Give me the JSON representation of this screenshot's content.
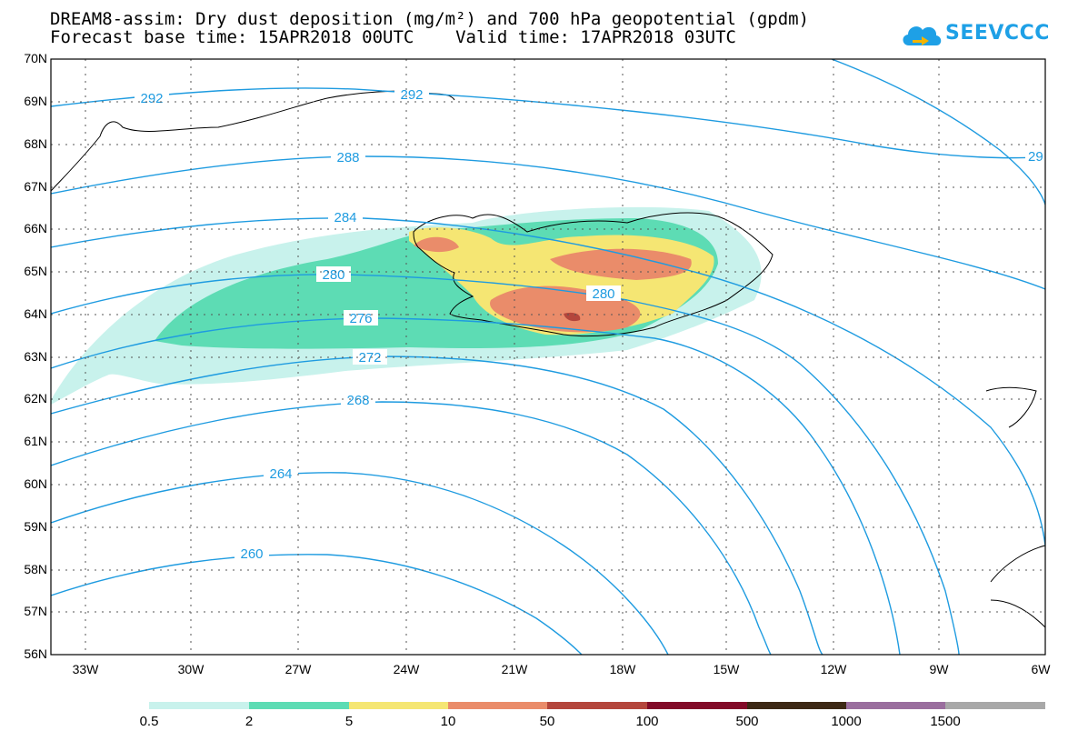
{
  "title": {
    "line1": "DREAM8-assim: Dry dust deposition (mg/m²) and 700 hPa geopotential (gpdm)",
    "line2": "Forecast base time: 15APR2018 00UTC    Valid time: 17APR2018 03UTC"
  },
  "logo": {
    "text": "SEEVCCC",
    "icon": "cloud-icon",
    "color": "#1ea0e6"
  },
  "map": {
    "lat_labels": [
      "70N",
      "69N",
      "68N",
      "67N",
      "66N",
      "65N",
      "64N",
      "63N",
      "62N",
      "61N",
      "60N",
      "59N",
      "58N",
      "57N",
      "56N"
    ],
    "lon_labels": [
      "33W",
      "30W",
      "27W",
      "24W",
      "21W",
      "18W",
      "15W",
      "12W",
      "9W",
      "6W"
    ],
    "contour_color": "#1e9be0",
    "contour_labels": [
      "292",
      "292",
      "288",
      "284",
      "280",
      "280",
      "276",
      "272",
      "268",
      "264",
      "260",
      "29"
    ]
  },
  "colorbar": {
    "labels": [
      "0.5",
      "2",
      "5",
      "10",
      "50",
      "100",
      "500",
      "1000",
      "1500"
    ],
    "colors": [
      "#c8f2ec",
      "#5ddcb4",
      "#f5e673",
      "#ea8c6a",
      "#b4463c",
      "#820a28",
      "#3c2814",
      "#9a6e9e",
      "#a8a8a8"
    ]
  }
}
